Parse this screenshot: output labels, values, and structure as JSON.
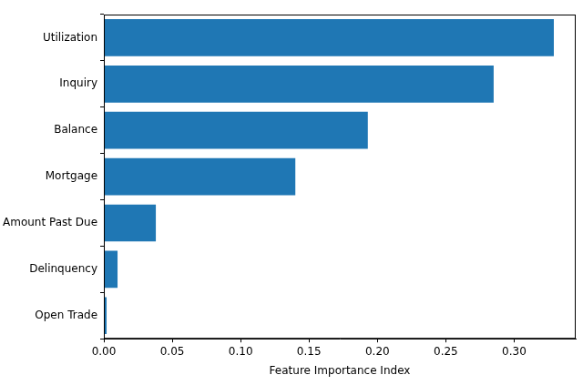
{
  "chart_data": {
    "type": "bar",
    "orientation": "horizontal",
    "x_label": "Feature Importance Index",
    "categories": [
      "Utilization",
      "Inquiry",
      "Balance",
      "Mortgage",
      "Amount Past Due",
      "Delinquency",
      "Open Trade"
    ],
    "values": [
      0.329,
      0.285,
      0.193,
      0.14,
      0.038,
      0.01,
      0.002
    ],
    "color": "#1f77b4",
    "xlim": [
      0,
      0.345
    ],
    "xticks": [
      {
        "value": 0,
        "label": "0.00"
      },
      {
        "value": 0.05,
        "label": "0.05"
      },
      {
        "value": 0.1,
        "label": "0.10"
      },
      {
        "value": 0.15,
        "label": "0.15"
      },
      {
        "value": 0.2,
        "label": "0.20"
      },
      {
        "value": 0.25,
        "label": "0.25"
      },
      {
        "value": 0.3,
        "label": "0.30"
      }
    ],
    "grid": false
  }
}
